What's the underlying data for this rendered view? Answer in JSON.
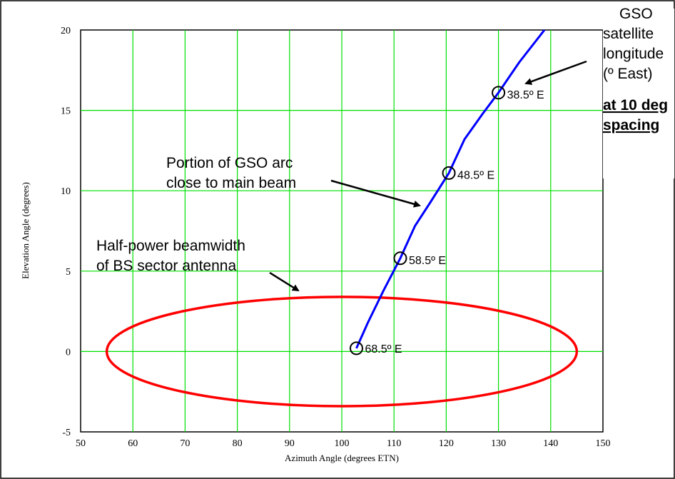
{
  "chart_data": {
    "type": "line",
    "title": "",
    "xlabel": "Azimuth Angle (degrees ETN)",
    "ylabel": "Elevation Angle (degrees)",
    "xlim": [
      50,
      150
    ],
    "ylim": [
      -5,
      20
    ],
    "grid": true,
    "x_ticks": [
      "50",
      "60",
      "70",
      "80",
      "90",
      "100",
      "110",
      "120",
      "130",
      "140",
      "150"
    ],
    "y_ticks": [
      "-5",
      "0",
      "5",
      "10",
      "15",
      "20"
    ],
    "series": [
      {
        "name": "",
        "color": "#0000ff",
        "x": [
          102.8,
          105.0,
          108.0,
          111.2,
          114.0,
          117.0,
          120.5,
          123.5,
          127.0,
          130.0,
          134.0,
          138.8
        ],
        "y": [
          0.2,
          1.8,
          3.8,
          5.8,
          7.8,
          9.3,
          11.1,
          13.2,
          14.8,
          16.1,
          18.0,
          20.0
        ]
      },
      {
        "name": "",
        "color": "#ff0000",
        "type": "ellipse",
        "center": [
          100,
          0
        ],
        "semi_axes": [
          45,
          3.4
        ]
      }
    ],
    "markers": [
      {
        "x": 102.8,
        "y": 0.2,
        "label": "68.5º E"
      },
      {
        "x": 111.2,
        "y": 5.8,
        "label": "58.5º E"
      },
      {
        "x": 120.5,
        "y": 11.1,
        "label": "48.5º E"
      },
      {
        "x": 130.0,
        "y": 16.1,
        "label": "38.5º E"
      }
    ],
    "annotations": {
      "gso_label": [
        "GSO",
        "satellite",
        "longitude",
        "(º East)"
      ],
      "spacing_label": [
        "at 10 deg",
        "spacing"
      ],
      "arc_label": [
        "Portion of GSO arc",
        "close to main beam"
      ],
      "beam_label": [
        "Half-power beamwidth",
        "of BS sector antenna"
      ]
    }
  }
}
